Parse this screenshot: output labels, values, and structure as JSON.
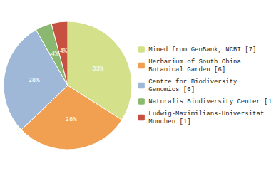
{
  "chart_data": {
    "type": "pie",
    "categories": [
      "Mined from GenBank, NCBI [7]",
      "Herbarium of South China\nBotanical Garden [6]",
      "Centre for Biodiversity\nGenomics [6]",
      "Naturalis Biodiversity Center [1]",
      "Ludwig-Maximilians-Universitat\nMunchen [1]"
    ],
    "values": [
      33,
      28,
      28,
      4,
      4
    ],
    "value_labels": [
      "33%",
      "28%",
      "28%",
      "4%",
      "4%"
    ],
    "colors": [
      "#d4e08a",
      "#f0a050",
      "#a0b8d8",
      "#8ab870",
      "#c85040"
    ],
    "data_labels": true,
    "legend": "right"
  }
}
